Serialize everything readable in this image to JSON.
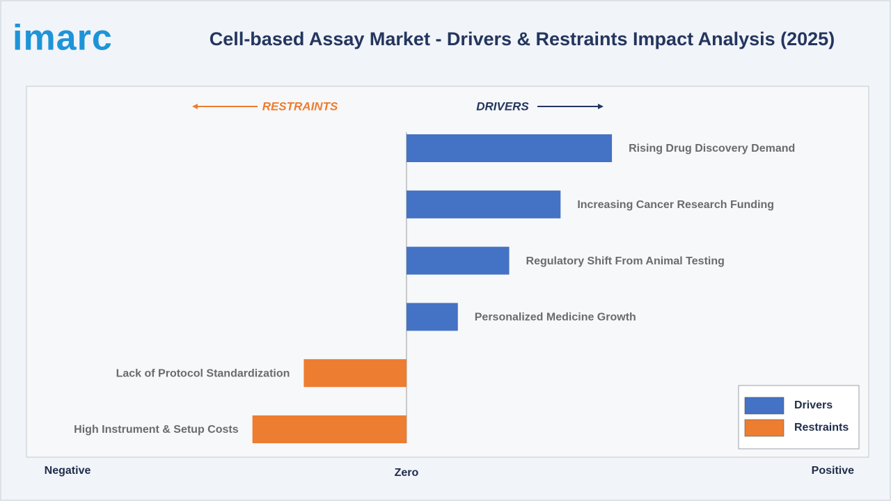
{
  "logo": "imarc",
  "chart_data": {
    "type": "bar",
    "orientation": "horizontal",
    "title": "Cell-based Assay Market - Drivers & Restraints Impact Analysis (2025)",
    "annotations": [
      "RESTRAINTS",
      "DRIVERS"
    ],
    "categories": [
      "Rising Drug Discovery Demand",
      "Increasing Cancer Research Funding",
      "Regulatory Shift From Animal Testing",
      "Personalized Medicine Growth",
      "Lack of Protocol Standardization",
      "High Instrument & Setup Costs"
    ],
    "series": [
      {
        "name": "Drivers",
        "color": "#4472c4",
        "values": [
          4,
          3,
          2,
          1,
          null,
          null
        ]
      },
      {
        "name": "Restraints",
        "color": "#ed7d31",
        "values": [
          null,
          null,
          null,
          null,
          -2,
          -3
        ]
      }
    ],
    "xlim": [
      -7.4,
      9
    ],
    "xticks": [
      {
        "value": -6.6,
        "label": "Negative"
      },
      {
        "value": 0,
        "label": "Zero"
      },
      {
        "value": 8.3,
        "label": "Positive"
      }
    ],
    "legend": "bottom-right"
  }
}
